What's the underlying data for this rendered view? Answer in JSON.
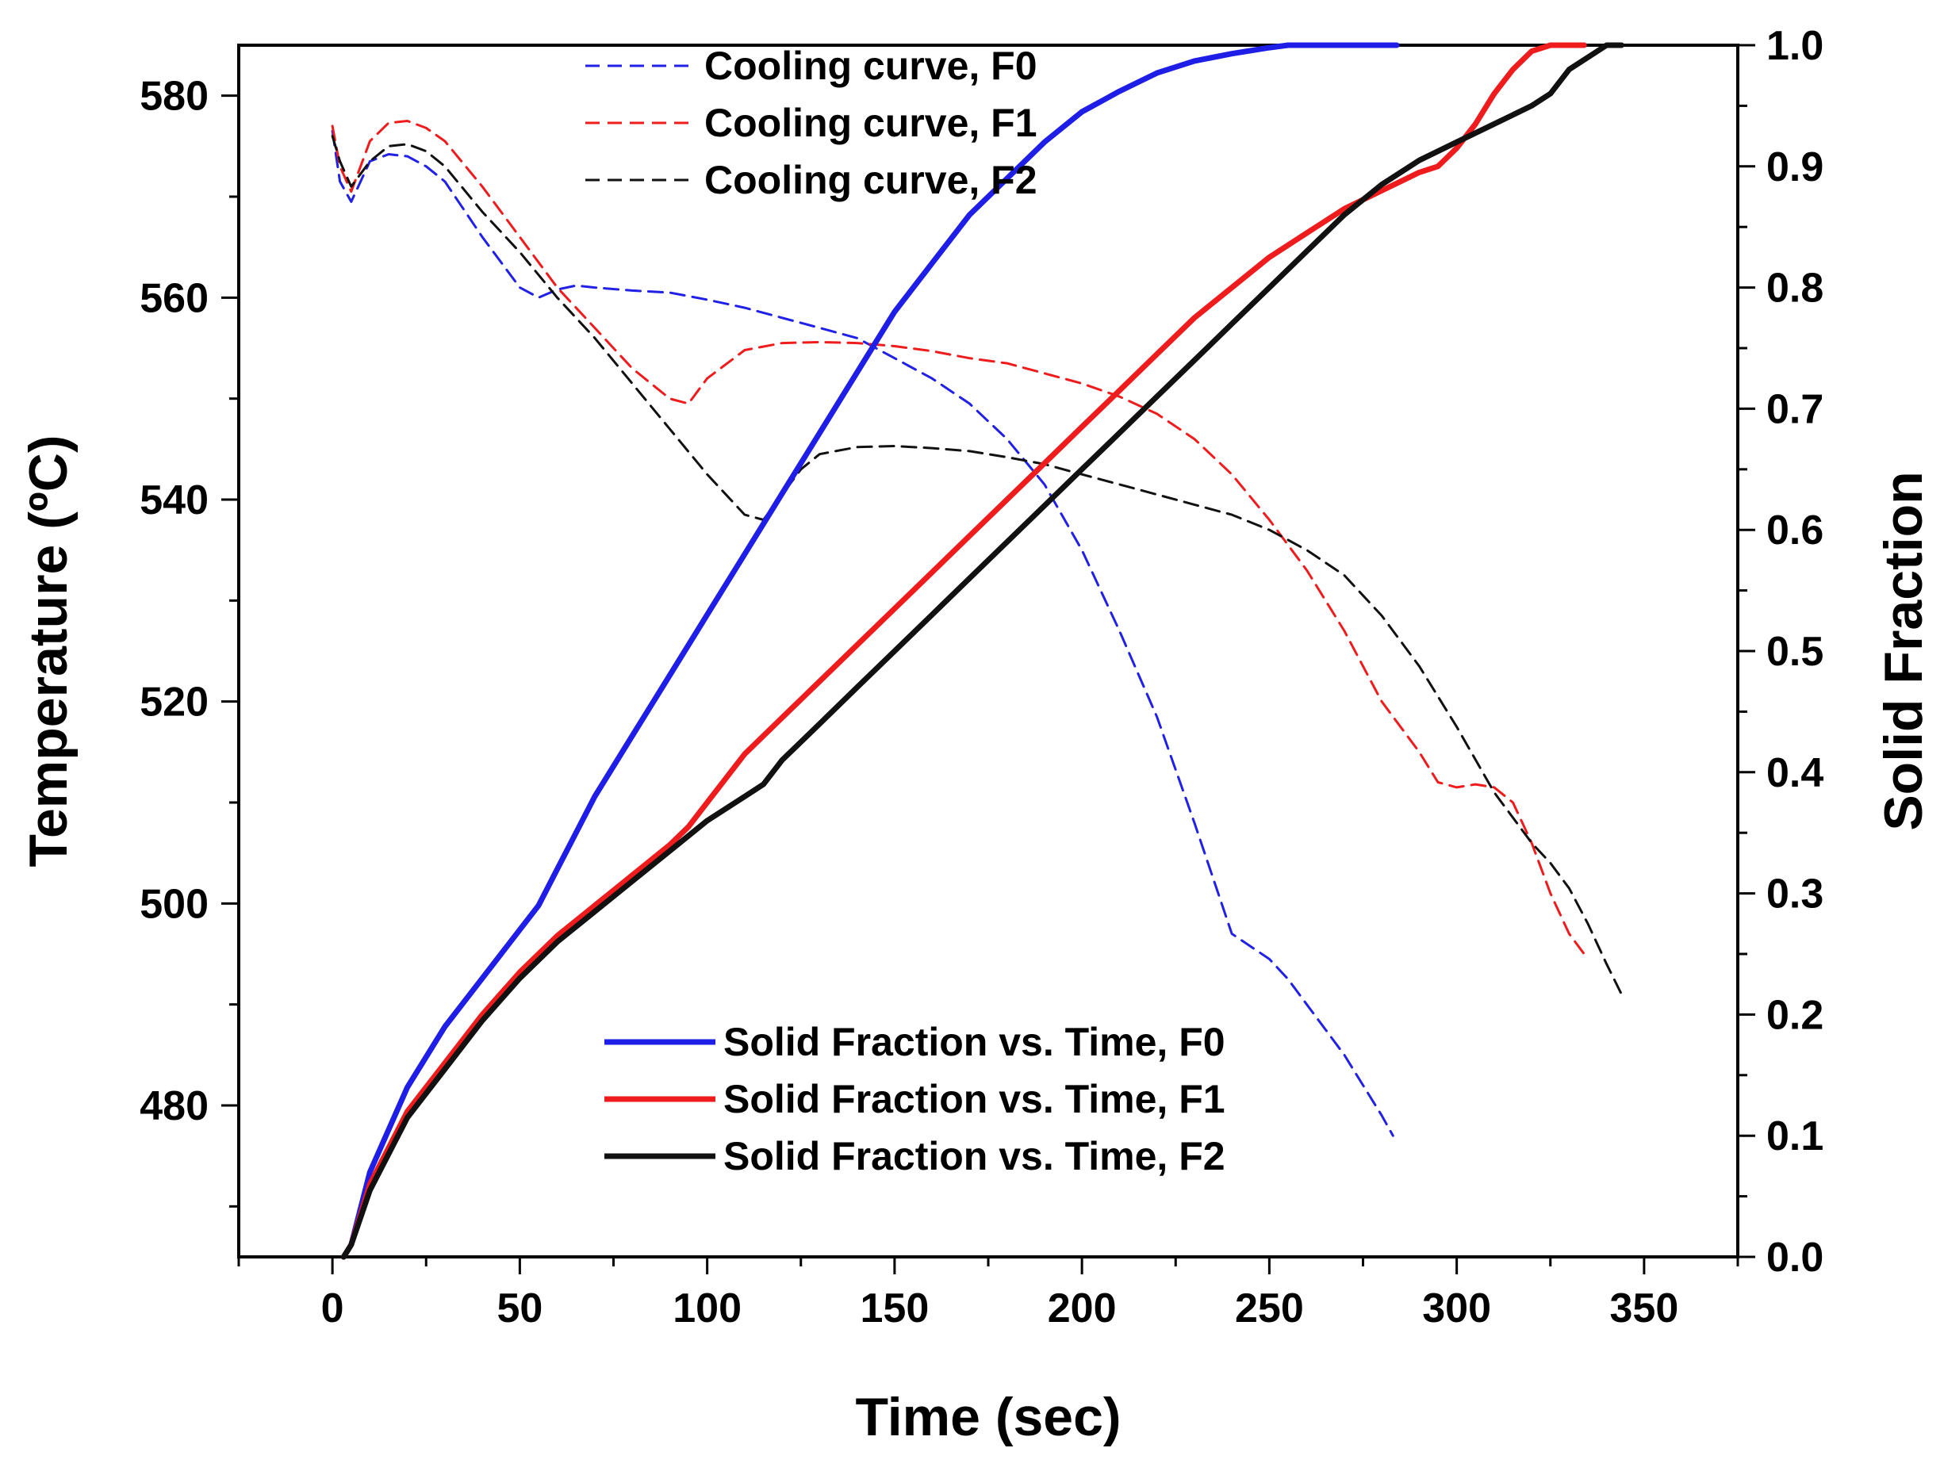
{
  "chart_data": {
    "type": "line",
    "xlabel": "Time (sec)",
    "ylabel_left": "Temperature (ºC)",
    "ylabel_right": "Solid Fraction",
    "xlim": [
      -25,
      375
    ],
    "ylim_left": [
      465,
      585
    ],
    "ylim_right": [
      0,
      1.0
    ],
    "x_ticks": [
      0,
      50,
      100,
      150,
      200,
      250,
      300,
      350
    ],
    "x_tick_labels": [
      "0",
      "50",
      "100",
      "150",
      "200",
      "250",
      "300",
      "350"
    ],
    "y_left_ticks": [
      480,
      500,
      520,
      540,
      560,
      580
    ],
    "y_left_tick_labels": [
      "480",
      "500",
      "520",
      "540",
      "560",
      "580"
    ],
    "y_right_ticks": [
      0,
      0.1,
      0.2,
      0.3,
      0.4,
      0.5,
      0.6,
      0.7,
      0.8,
      0.9,
      1.0
    ],
    "y_right_tick_labels": [
      "0.0",
      "0.1",
      "0.2",
      "0.3",
      "0.4",
      "0.5",
      "0.6",
      "0.7",
      "0.8",
      "0.9",
      "1.0"
    ],
    "grid": false,
    "legend_top_placement": "top-center",
    "legend_bottom_placement": "bottom-center",
    "series": [
      {
        "name": "Cooling curve, F0",
        "axis": "left",
        "style": "dashed",
        "color": "#2020e6",
        "x": [
          0,
          2,
          5,
          10,
          15,
          20,
          25,
          30,
          40,
          50,
          55,
          60,
          65,
          70,
          80,
          90,
          100,
          110,
          120,
          130,
          140,
          150,
          160,
          170,
          180,
          190,
          200,
          210,
          220,
          230,
          240,
          250,
          255,
          260,
          265,
          270,
          275,
          280,
          283
        ],
        "y": [
          576.5,
          571.5,
          569.5,
          573.5,
          574.2,
          574,
          573,
          571.5,
          566,
          561,
          560,
          560.8,
          561.2,
          561,
          560.7,
          560.5,
          559.8,
          559,
          558,
          557,
          556,
          554,
          552,
          549.5,
          546,
          541.5,
          535,
          527,
          518.5,
          508,
          497,
          494.5,
          492.5,
          490,
          487.5,
          485,
          482,
          479,
          477
        ]
      },
      {
        "name": "Cooling curve, F1",
        "axis": "left",
        "style": "dashed",
        "color": "#ee1c1c",
        "x": [
          0,
          2,
          5,
          10,
          15,
          20,
          25,
          30,
          40,
          50,
          60,
          70,
          80,
          90,
          95,
          100,
          110,
          120,
          130,
          140,
          150,
          160,
          170,
          180,
          190,
          200,
          210,
          220,
          230,
          240,
          250,
          260,
          270,
          280,
          290,
          295,
          300,
          305,
          310,
          315,
          320,
          325,
          330,
          334
        ],
        "y": [
          577,
          573,
          570.5,
          575.5,
          577.3,
          577.5,
          576.8,
          575.5,
          571,
          566,
          561,
          557,
          553,
          550,
          549.5,
          552,
          554.8,
          555.5,
          555.6,
          555.5,
          555.2,
          554.7,
          554,
          553.5,
          552.5,
          551.5,
          550.2,
          548.5,
          546,
          542.5,
          538,
          533,
          527,
          520,
          515,
          512,
          511.5,
          511.8,
          511.5,
          510,
          506,
          501,
          497,
          495
        ]
      },
      {
        "name": "Cooling curve, F2",
        "axis": "left",
        "style": "dashed",
        "color": "#111111",
        "x": [
          0,
          2,
          5,
          10,
          15,
          20,
          25,
          30,
          40,
          50,
          60,
          70,
          80,
          90,
          100,
          110,
          115,
          120,
          125,
          130,
          140,
          150,
          160,
          170,
          180,
          190,
          200,
          210,
          220,
          230,
          240,
          250,
          260,
          270,
          280,
          290,
          300,
          310,
          320,
          325,
          330,
          335,
          340,
          344
        ],
        "y": [
          576,
          573.5,
          571,
          573.5,
          575,
          575.2,
          574.5,
          573,
          568.5,
          564.5,
          560,
          556,
          551.5,
          547,
          542.5,
          538.5,
          538,
          540.5,
          543,
          544.5,
          545.2,
          545.3,
          545.1,
          544.8,
          544.2,
          543.5,
          542.5,
          541.5,
          540.5,
          539.5,
          538.5,
          537,
          535,
          532.5,
          528.5,
          523.5,
          517.5,
          511,
          506,
          504,
          501.5,
          498,
          494,
          491
        ]
      },
      {
        "name": "Solid Fraction vs. Time, F0",
        "axis": "right",
        "style": "solid",
        "color": "#1e1ee6",
        "x": [
          3,
          5,
          10,
          20,
          30,
          40,
          50,
          55,
          60,
          70,
          80,
          90,
          100,
          110,
          120,
          130,
          140,
          150,
          160,
          170,
          180,
          190,
          200,
          210,
          220,
          230,
          240,
          250,
          255,
          260,
          265,
          270,
          275,
          280,
          284
        ],
        "y": [
          0,
          0.01,
          0.07,
          0.14,
          0.19,
          0.23,
          0.27,
          0.29,
          0.32,
          0.38,
          0.43,
          0.48,
          0.53,
          0.58,
          0.63,
          0.68,
          0.73,
          0.78,
          0.82,
          0.86,
          0.89,
          0.92,
          0.945,
          0.962,
          0.977,
          0.987,
          0.993,
          0.998,
          1.0,
          1.0,
          1.0,
          1.0,
          1.0,
          1.0,
          1.0
        ]
      },
      {
        "name": "Solid Fraction vs. Time, F1",
        "axis": "right",
        "style": "solid",
        "color": "#ee1c1c",
        "x": [
          3,
          5,
          10,
          20,
          30,
          40,
          50,
          60,
          70,
          80,
          90,
          95,
          100,
          105,
          110,
          120,
          130,
          140,
          150,
          160,
          170,
          180,
          190,
          200,
          210,
          220,
          230,
          240,
          250,
          260,
          270,
          280,
          290,
          295,
          300,
          305,
          310,
          315,
          320,
          325,
          330,
          334
        ],
        "y": [
          0,
          0.01,
          0.06,
          0.12,
          0.16,
          0.2,
          0.235,
          0.265,
          0.29,
          0.315,
          0.34,
          0.355,
          0.375,
          0.395,
          0.415,
          0.445,
          0.475,
          0.505,
          0.535,
          0.565,
          0.595,
          0.625,
          0.655,
          0.685,
          0.715,
          0.745,
          0.775,
          0.8,
          0.825,
          0.845,
          0.865,
          0.88,
          0.895,
          0.9,
          0.915,
          0.935,
          0.96,
          0.98,
          0.995,
          1.0,
          1.0,
          1.0
        ]
      },
      {
        "name": "Solid Fraction vs. Time, F2",
        "axis": "right",
        "style": "solid",
        "color": "#111111",
        "x": [
          3,
          5,
          10,
          20,
          30,
          40,
          50,
          60,
          70,
          80,
          90,
          100,
          110,
          115,
          120,
          125,
          130,
          140,
          150,
          160,
          170,
          180,
          190,
          200,
          210,
          220,
          230,
          240,
          250,
          260,
          270,
          280,
          290,
          300,
          310,
          320,
          325,
          330,
          335,
          340,
          344
        ],
        "y": [
          0,
          0.01,
          0.055,
          0.115,
          0.155,
          0.195,
          0.23,
          0.26,
          0.285,
          0.31,
          0.335,
          0.36,
          0.38,
          0.39,
          0.41,
          0.425,
          0.44,
          0.47,
          0.5,
          0.53,
          0.56,
          0.59,
          0.62,
          0.65,
          0.68,
          0.71,
          0.74,
          0.77,
          0.8,
          0.83,
          0.86,
          0.885,
          0.905,
          0.92,
          0.935,
          0.95,
          0.96,
          0.98,
          0.99,
          1.0,
          1.0
        ]
      }
    ]
  }
}
